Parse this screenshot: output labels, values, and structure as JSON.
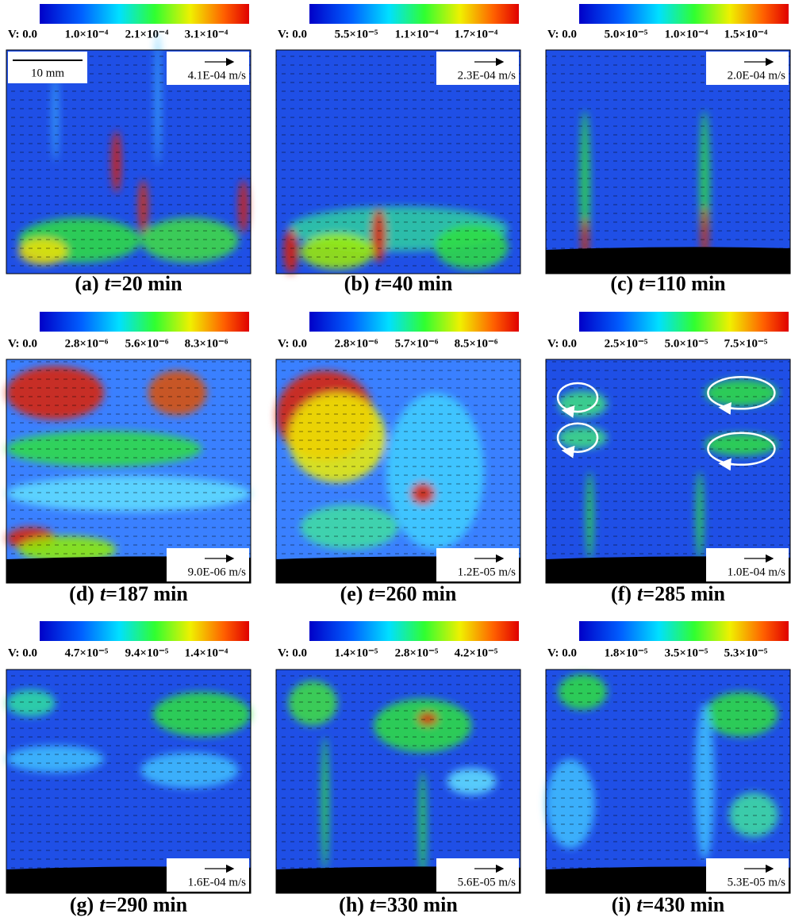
{
  "panels": [
    {
      "label": "(a)",
      "variable": "t",
      "time": "=20 min",
      "colorbar": [
        "V: 0.0",
        "1.0×10⁻⁴",
        "2.1×10⁻⁴",
        "3.1×10⁻⁴"
      ],
      "scale": "4.1E-04 m/s",
      "scale_bar": "10 mm"
    },
    {
      "label": "(b)",
      "variable": "t",
      "time": "=40 min",
      "colorbar": [
        "V: 0.0",
        "5.5×10⁻⁵",
        "1.1×10⁻⁴",
        "1.7×10⁻⁴"
      ],
      "scale": "2.3E-04 m/s"
    },
    {
      "label": "(c)",
      "variable": "t",
      "time": "=110 min",
      "colorbar": [
        "V: 0.0",
        "5.0×10⁻⁵",
        "1.0×10⁻⁴",
        "1.5×10⁻⁴"
      ],
      "scale": "2.0E-04 m/s"
    },
    {
      "label": "(d)",
      "variable": "t",
      "time": "=187 min",
      "colorbar": [
        "V: 0.0",
        "2.8×10⁻⁶",
        "5.6×10⁻⁶",
        "8.3×10⁻⁶"
      ],
      "scale": "9.0E-06 m/s"
    },
    {
      "label": "(e)",
      "variable": "t",
      "time": "=260 min",
      "colorbar": [
        "V: 0.0",
        "2.8×10⁻⁶",
        "5.7×10⁻⁶",
        "8.5×10⁻⁶"
      ],
      "scale": "1.2E-05 m/s"
    },
    {
      "label": "(f)",
      "variable": "t",
      "time": "=285 min",
      "colorbar": [
        "V: 0.0",
        "2.5×10⁻⁵",
        "5.0×10⁻⁵",
        "7.5×10⁻⁵"
      ],
      "scale": "1.0E-04 m/s"
    },
    {
      "label": "(g)",
      "variable": "t",
      "time": "=290 min",
      "colorbar": [
        "V: 0.0",
        "4.7×10⁻⁵",
        "9.4×10⁻⁵",
        "1.4×10⁻⁴"
      ],
      "scale": "1.6E-04 m/s"
    },
    {
      "label": "(h)",
      "variable": "t",
      "time": "=330 min",
      "colorbar": [
        "V: 0.0",
        "1.4×10⁻⁵",
        "2.8×10⁻⁵",
        "4.2×10⁻⁵"
      ],
      "scale": "5.6E-05 m/s"
    },
    {
      "label": "(i)",
      "variable": "t",
      "time": "=430 min",
      "colorbar": [
        "V: 0.0",
        "1.8×10⁻⁵",
        "3.5×10⁻⁵",
        "5.3×10⁻⁵"
      ],
      "scale": "5.3E-05 m/s"
    }
  ]
}
